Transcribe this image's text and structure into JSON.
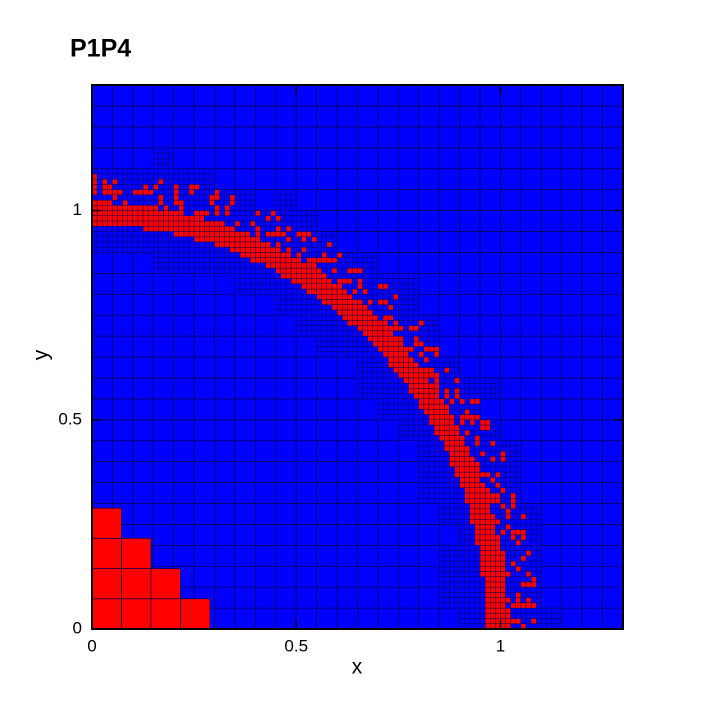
{
  "chart_data": {
    "type": "mesh",
    "title": "P1P4",
    "xlabel": "x",
    "ylabel": "y",
    "xlim": [
      0,
      1.3
    ],
    "ylim": [
      0,
      1.3
    ],
    "xticks": [
      0,
      0.5,
      1
    ],
    "yticks": [
      0,
      0.5,
      1
    ],
    "background_color": "#0000ff",
    "marked_color": "#ff0000"
  }
}
